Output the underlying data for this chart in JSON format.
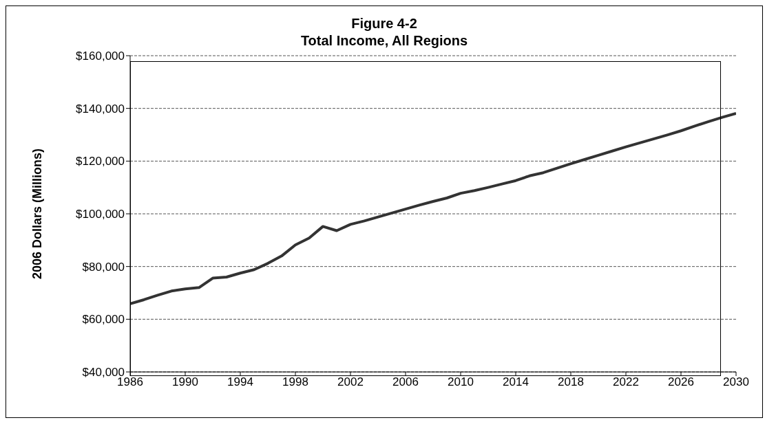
{
  "chart_data": {
    "type": "line",
    "title": "Figure 4-2",
    "subtitle": "Total Income, All Regions",
    "ylabel": "2006 Dollars (Millions)",
    "x": [
      1986,
      1987,
      1988,
      1989,
      1990,
      1991,
      1992,
      1993,
      1994,
      1995,
      1996,
      1997,
      1998,
      1999,
      2000,
      2001,
      2002,
      2003,
      2004,
      2005,
      2006,
      2007,
      2008,
      2009,
      2010,
      2011,
      2012,
      2013,
      2014,
      2015,
      2016,
      2017,
      2018,
      2019,
      2020,
      2021,
      2022,
      2023,
      2024,
      2025,
      2026,
      2027,
      2028,
      2029,
      2030
    ],
    "series": [
      {
        "color": "#333333",
        "values": [
          65900,
          67400,
          69100,
          70700,
          71500,
          72000,
          75600,
          76000,
          77500,
          78800,
          81200,
          84000,
          88200,
          90800,
          95200,
          93600,
          96000,
          97300,
          98800,
          100300,
          101800,
          103300,
          104700,
          106000,
          107800,
          108800,
          110000,
          111300,
          112600,
          114400,
          115600,
          117300,
          119000,
          120600,
          122200,
          123800,
          125400,
          126900,
          128400,
          129900,
          131500,
          133300,
          135000,
          136600,
          138100
        ]
      }
    ],
    "xlim": [
      1986,
      2030
    ],
    "xticks": [
      1986,
      1990,
      1994,
      1998,
      2002,
      2006,
      2010,
      2014,
      2018,
      2022,
      2026,
      2030
    ],
    "ylim": [
      40000,
      160000
    ],
    "yticks": [
      {
        "value": 40000,
        "label": "$40,000"
      },
      {
        "value": 60000,
        "label": "$60,000"
      },
      {
        "value": 80000,
        "label": "$80,000"
      },
      {
        "value": 100000,
        "label": "$100,000"
      },
      {
        "value": 120000,
        "label": "$120,000"
      },
      {
        "value": 140000,
        "label": "$140,000"
      },
      {
        "value": 160000,
        "label": "$160,000"
      }
    ],
    "grid": "y",
    "legend": false,
    "marker": "none",
    "line_style": "solid"
  }
}
